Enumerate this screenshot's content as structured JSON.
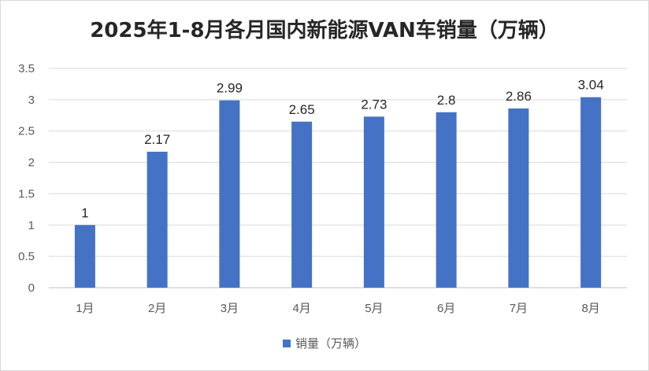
{
  "chart_data": {
    "type": "bar",
    "title": "2025年1-8月各月国内新能源VAN车销量（万辆）",
    "categories": [
      "1月",
      "2月",
      "3月",
      "4月",
      "5月",
      "6月",
      "7月",
      "8月"
    ],
    "series": [
      {
        "name": "销量（万辆）",
        "values": [
          1,
          2.17,
          2.99,
          2.65,
          2.73,
          2.8,
          2.86,
          3.04
        ],
        "color": "#4472C4"
      }
    ],
    "ylim": [
      0,
      3.5
    ],
    "yticks": [
      "0",
      "0.5",
      "1",
      "1.5",
      "2",
      "2.5",
      "3",
      "3.5"
    ],
    "xlabel": "",
    "ylabel": "",
    "grid": true,
    "legend": "bottom"
  }
}
